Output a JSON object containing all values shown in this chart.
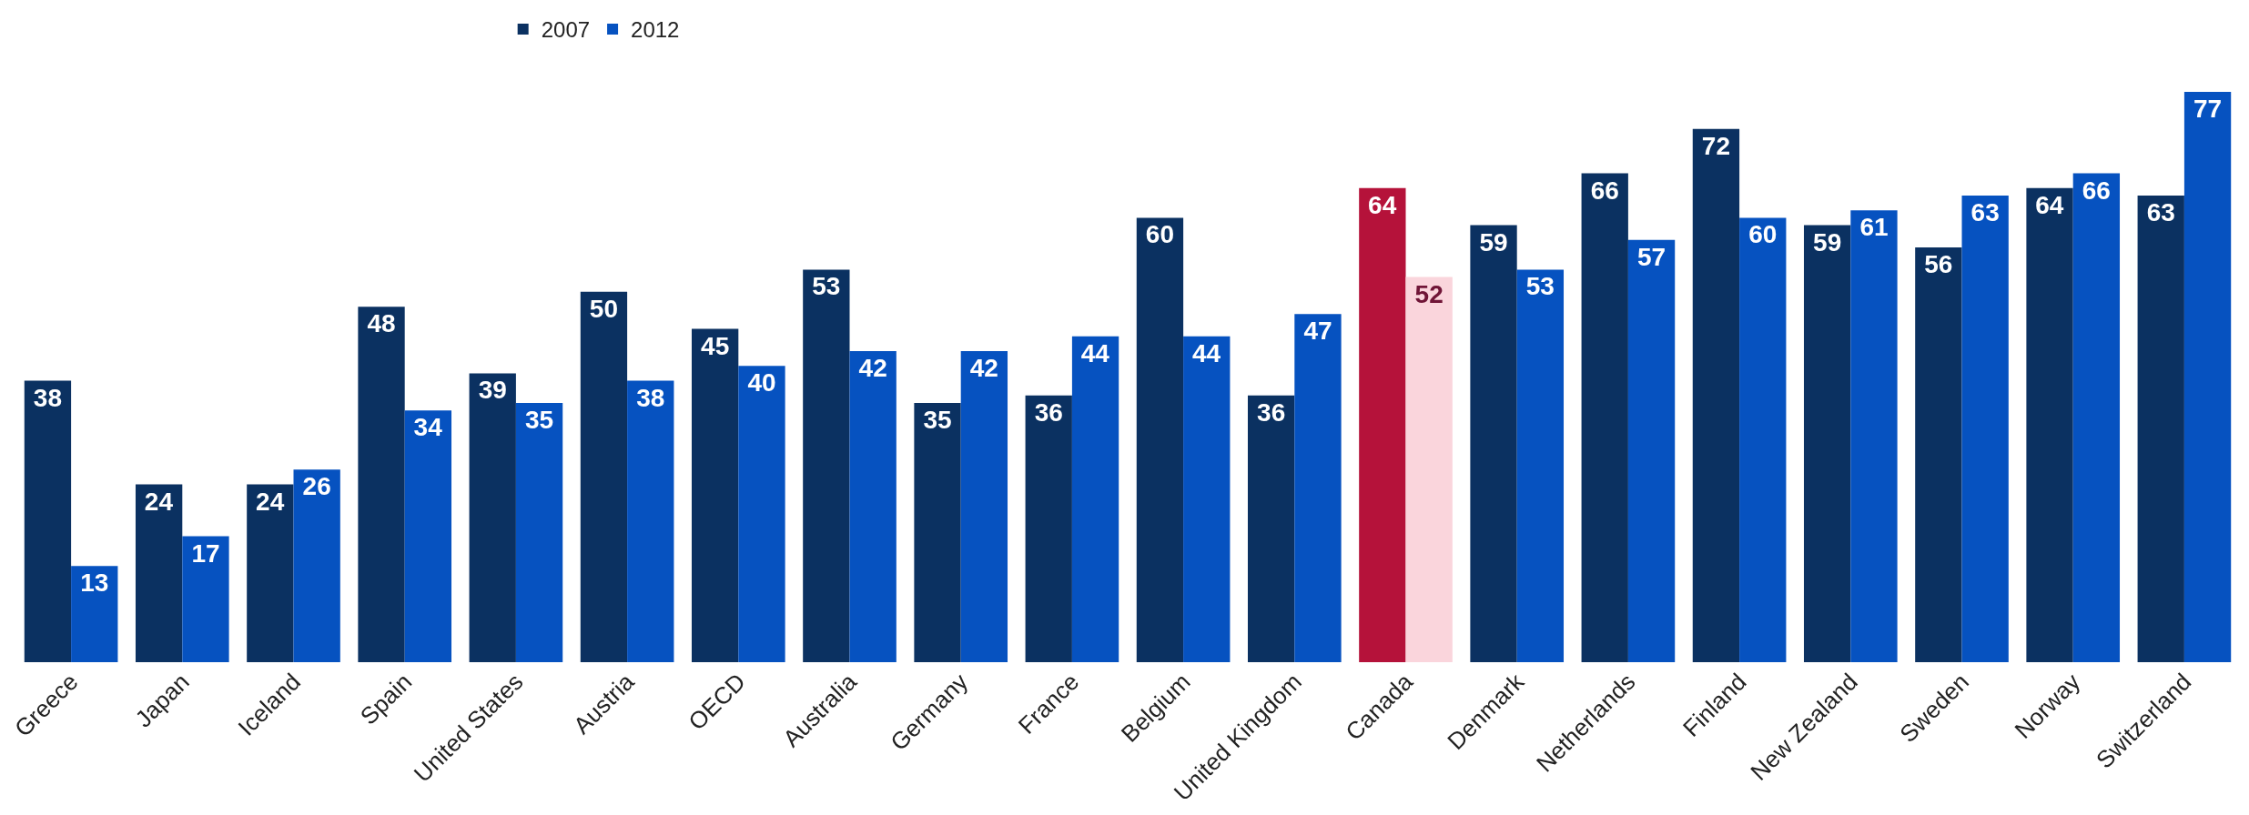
{
  "chart_data": {
    "type": "bar",
    "categories": [
      "Greece",
      "Japan",
      "Iceland",
      "Spain",
      "United States",
      "Austria",
      "OECD",
      "Australia",
      "Germany",
      "France",
      "Belgium",
      "United Kingdom",
      "Canada",
      "Denmark",
      "Netherlands",
      "Finland",
      "New Zealand",
      "Sweden",
      "Norway",
      "Switzerland"
    ],
    "series": [
      {
        "name": "2007",
        "color": "#0b3161",
        "colors": [
          null,
          null,
          null,
          null,
          null,
          null,
          null,
          null,
          null,
          null,
          null,
          null,
          "#b5123a",
          null,
          null,
          null,
          null,
          null,
          null,
          null
        ],
        "values": [
          38,
          24,
          24,
          48,
          39,
          50,
          45,
          53,
          35,
          36,
          60,
          36,
          64,
          59,
          66,
          72,
          59,
          56,
          64,
          63
        ]
      },
      {
        "name": "2012",
        "color": "#0652c0",
        "colors": [
          null,
          null,
          null,
          null,
          null,
          null,
          null,
          null,
          null,
          null,
          null,
          null,
          "#fad5dc",
          null,
          null,
          null,
          null,
          null,
          null,
          null
        ],
        "values": [
          13,
          17,
          26,
          34,
          35,
          38,
          40,
          42,
          42,
          44,
          44,
          47,
          52,
          53,
          57,
          60,
          61,
          63,
          66,
          77
        ]
      }
    ],
    "data_labels": true,
    "legend": "top left"
  }
}
